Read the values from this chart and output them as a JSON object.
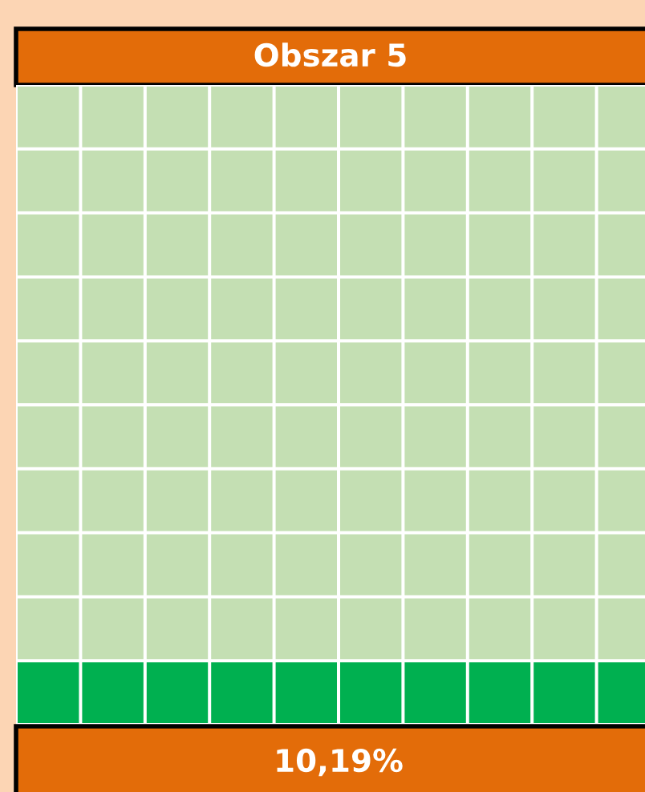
{
  "chart_data": {
    "type": "other",
    "title": "Obszar 5",
    "values": [
      10.19
    ],
    "value_labels": [
      "10,19%"
    ]
  }
}
